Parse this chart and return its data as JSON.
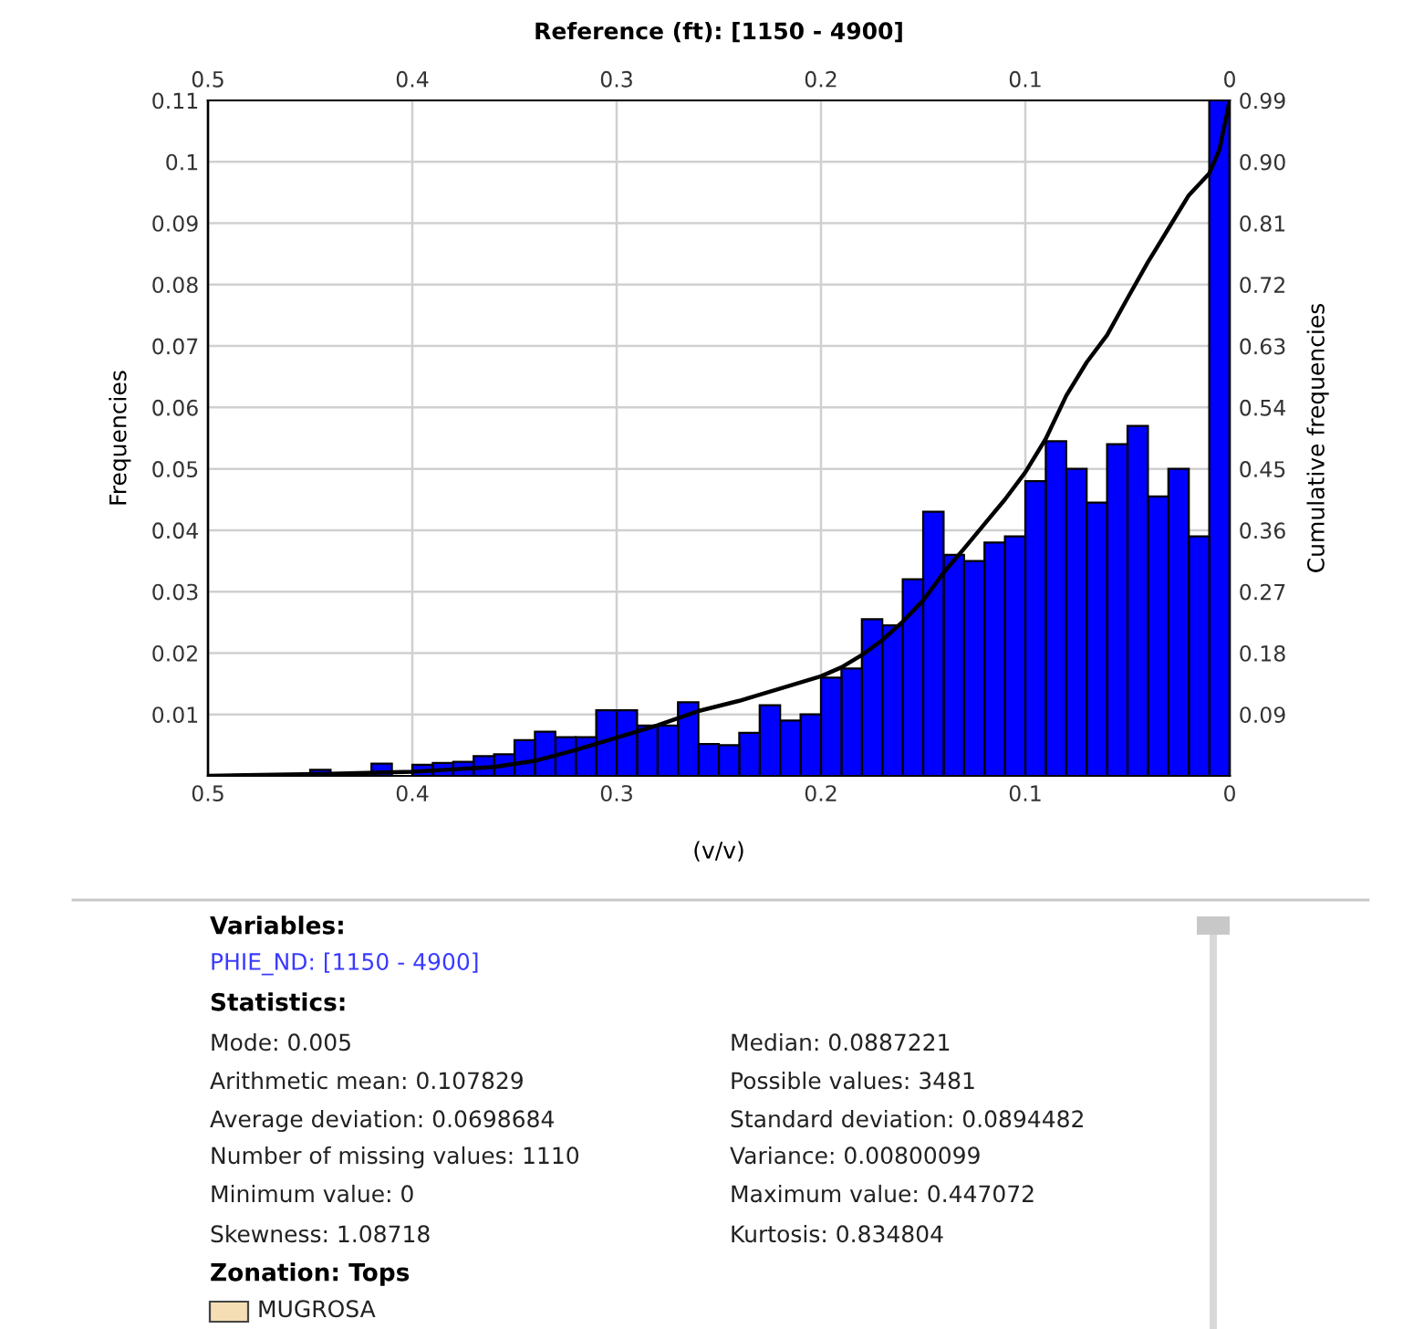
{
  "chart_data": {
    "type": "histogram",
    "title": "Reference (ft): [1150 - 4900]",
    "xlabel": "(v/v)",
    "ylabel": "Frequencies",
    "y2label": "Cumulative frequencies",
    "bins": [
      0,
      0.01,
      0.02,
      0.03,
      0.04,
      0.05,
      0.06,
      0.07,
      0.08,
      0.09,
      0.1,
      0.11,
      0.12,
      0.13,
      0.14,
      0.15,
      0.16,
      0.17,
      0.18,
      0.19,
      0.2,
      0.21,
      0.22,
      0.23,
      0.24,
      0.25,
      0.26,
      0.27,
      0.28,
      0.29,
      0.3,
      0.31,
      0.32,
      0.33,
      0.34,
      0.35,
      0.36,
      0.37,
      0.38,
      0.39,
      0.4,
      0.41,
      0.42,
      0.43,
      0.44,
      0.45,
      0.46,
      0.47,
      0.48,
      0.49,
      0.5
    ],
    "series": [
      {
        "color": "#0000ff",
        "values": [
          0.11,
          0.039,
          0.05,
          0.0455,
          0.057,
          0.054,
          0.0445,
          0.05,
          0.0545,
          0.048,
          0.039,
          0.038,
          0.035,
          0.036,
          0.043,
          0.032,
          0.0245,
          0.0255,
          0.0175,
          0.016,
          0.01,
          0.009,
          0.0115,
          0.007,
          0.005,
          0.0052,
          0.012,
          0.0082,
          0.0082,
          0.0107,
          0.0107,
          0.0063,
          0.0063,
          0.0072,
          0.0058,
          0.0035,
          0.0032,
          0.0023,
          0.0021,
          0.0018,
          null,
          0.002,
          null,
          null,
          0.001,
          null,
          0,
          0,
          0,
          0
        ]
      },
      {
        "type": "line",
        "axis": "y2",
        "color": "#000000",
        "x": [
          0,
          0.005,
          0.01,
          0.02,
          0.03,
          0.04,
          0.05,
          0.06,
          0.07,
          0.08,
          0.09,
          0.1,
          0.11,
          0.12,
          0.13,
          0.14,
          0.15,
          0.16,
          0.17,
          0.18,
          0.19,
          0.2,
          0.22,
          0.24,
          0.26,
          0.28,
          0.3,
          0.32,
          0.34,
          0.36,
          0.4,
          0.44,
          0.5
        ],
        "values": [
          0.99,
          0.918,
          0.883,
          0.851,
          0.802,
          0.753,
          0.7,
          0.646,
          0.606,
          0.557,
          0.494,
          0.445,
          0.405,
          0.369,
          0.333,
          0.298,
          0.257,
          0.226,
          0.199,
          0.177,
          0.159,
          0.146,
          0.128,
          0.11,
          0.095,
          0.074,
          0.056,
          0.038,
          0.022,
          0.013,
          0.006,
          0.003,
          0
        ]
      }
    ],
    "xlim": [
      0.5,
      0
    ],
    "xticks": [
      0.5,
      0.4,
      0.3,
      0.2,
      0.1,
      0
    ],
    "x2lim": [
      0.5,
      0
    ],
    "x2ticks": [
      0.5,
      0.4,
      0.3,
      0.2,
      0.1,
      0
    ],
    "ylim": [
      0,
      0.11
    ],
    "yticks": [
      0.01,
      0.02,
      0.03,
      0.04,
      0.05,
      0.06,
      0.07,
      0.08,
      0.09,
      0.1,
      0.11
    ],
    "y2lim": [
      0,
      0.99
    ],
    "y2ticks": [
      0.09,
      0.18,
      0.27,
      0.36,
      0.45,
      0.54,
      0.63,
      0.72,
      0.81,
      {
        "value": 0.9,
        "label": "0.90"
      },
      0.99
    ],
    "grid": true,
    "annotations": [
      "Variables:",
      "PHIE_ND: [1150 - 4900]",
      "Statistics:",
      "Mode: 0.005",
      "Median: 0.0887221",
      "Arithmetic mean: 0.107829",
      "Possible values: 3481",
      "Average deviation: 0.0698684",
      "Standard deviation: 0.0894482",
      "Number of missing values: 1110",
      "Variance: 0.00800099",
      "Minimum value: 0",
      "Maximum value: 0.447072",
      "Skewness: 1.08718",
      "Kurtosis: 0.834804",
      "Zonation: Tops",
      "MUGROSA"
    ]
  }
}
